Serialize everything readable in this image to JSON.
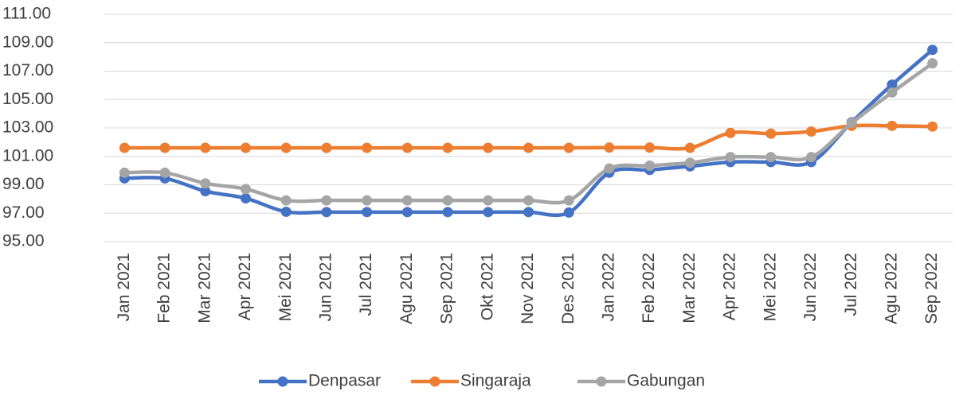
{
  "chart_data": {
    "type": "line",
    "categories": [
      "Jan 2021",
      "Feb 2021",
      "Mar 2021",
      "Apr 2021",
      "Mei 2021",
      "Jun 2021",
      "Jul 2021",
      "Agu 2021",
      "Sep 2021",
      "Okt 2021",
      "Nov 2021",
      "Des 2021",
      "Jan 2022",
      "Feb 2022",
      "Mar 2022",
      "Apr 2022",
      "Mei 2022",
      "Jun 2022",
      "Jul 2022",
      "Agu 2022",
      "Sep 2022"
    ],
    "series": [
      {
        "name": "Denpasar",
        "color": "#4472c4",
        "values": [
          99.45,
          99.45,
          98.55,
          98.05,
          97.1,
          97.08,
          97.08,
          97.08,
          97.08,
          97.08,
          97.08,
          97.05,
          99.85,
          100.05,
          100.3,
          100.6,
          100.6,
          100.6,
          103.4,
          106.05,
          108.5
        ]
      },
      {
        "name": "Singaraja",
        "color": "#ed7d31",
        "values": [
          101.6,
          101.6,
          101.6,
          101.6,
          101.6,
          101.6,
          101.6,
          101.6,
          101.6,
          101.6,
          101.6,
          101.6,
          101.62,
          101.62,
          101.6,
          102.65,
          102.6,
          102.75,
          103.15,
          103.15,
          103.1
        ]
      },
      {
        "name": "Gabungan",
        "color": "#a5a5a5",
        "values": [
          99.85,
          99.85,
          99.1,
          98.7,
          97.9,
          97.9,
          97.9,
          97.9,
          97.9,
          97.9,
          97.9,
          97.9,
          100.15,
          100.35,
          100.55,
          100.95,
          100.95,
          100.95,
          103.35,
          105.5,
          107.55
        ]
      }
    ],
    "ylim": [
      95,
      111
    ],
    "yticks": [
      {
        "value": 95,
        "label": "95.00"
      },
      {
        "value": 97,
        "label": "97.00"
      },
      {
        "value": 99,
        "label": "99.00"
      },
      {
        "value": 101,
        "label": "101.00"
      },
      {
        "value": 103,
        "label": "103.00"
      },
      {
        "value": 105,
        "label": "105.00"
      },
      {
        "value": 107,
        "label": "107.00"
      },
      {
        "value": 109,
        "label": "109.00"
      },
      {
        "value": 111,
        "label": "111.00"
      }
    ],
    "grid": true,
    "legend": "bottom"
  }
}
